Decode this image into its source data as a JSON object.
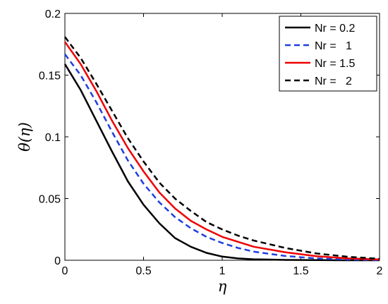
{
  "chart_data": {
    "type": "line",
    "title": "",
    "xlabel": "η",
    "ylabel": "θ(η)",
    "xlim": [
      0,
      2
    ],
    "ylim": [
      0,
      0.2
    ],
    "xticks": [
      0,
      0.5,
      1,
      1.5,
      2
    ],
    "xtick_labels": [
      "0",
      "0.5",
      "1",
      "1.5",
      "2"
    ],
    "yticks": [
      0,
      0.05,
      0.1,
      0.15,
      0.2
    ],
    "ytick_labels": [
      "0",
      "0.05",
      "0.1",
      "0.15",
      "0.2"
    ],
    "grid": false,
    "legend_position": "top-right",
    "series": [
      {
        "name": "Nr = 0.2",
        "color": "#000000",
        "style": "solid",
        "x": [
          0,
          0.1,
          0.2,
          0.3,
          0.4,
          0.5,
          0.6,
          0.7,
          0.8,
          0.9,
          1.0,
          1.1,
          1.2,
          1.4,
          1.6,
          1.8,
          2.0
        ],
        "y": [
          0.159,
          0.138,
          0.113,
          0.088,
          0.064,
          0.045,
          0.03,
          0.018,
          0.011,
          0.006,
          0.003,
          0.0015,
          0.0008,
          0.0003,
          0.0001,
          0.0,
          0.0
        ]
      },
      {
        "name": "Nr =   1",
        "color": "#1f3fe0",
        "style": "dashed",
        "x": [
          0,
          0.1,
          0.2,
          0.3,
          0.4,
          0.5,
          0.6,
          0.7,
          0.8,
          0.9,
          1.0,
          1.1,
          1.2,
          1.4,
          1.6,
          1.8,
          2.0
        ],
        "y": [
          0.167,
          0.15,
          0.128,
          0.104,
          0.081,
          0.062,
          0.047,
          0.035,
          0.026,
          0.019,
          0.014,
          0.01,
          0.007,
          0.0035,
          0.0015,
          0.0006,
          0.0002
        ]
      },
      {
        "name": "Nr = 1.5",
        "color": "#ee0000",
        "style": "solid",
        "x": [
          0,
          0.1,
          0.2,
          0.3,
          0.4,
          0.5,
          0.6,
          0.7,
          0.8,
          0.9,
          1.0,
          1.1,
          1.2,
          1.4,
          1.6,
          1.8,
          2.0
        ],
        "y": [
          0.177,
          0.159,
          0.137,
          0.113,
          0.091,
          0.072,
          0.055,
          0.042,
          0.032,
          0.025,
          0.019,
          0.015,
          0.011,
          0.0065,
          0.0033,
          0.0015,
          0.0006
        ]
      },
      {
        "name": "Nr =   2",
        "color": "#000000",
        "style": "dashed",
        "x": [
          0,
          0.1,
          0.2,
          0.3,
          0.4,
          0.5,
          0.6,
          0.7,
          0.8,
          0.9,
          1.0,
          1.1,
          1.2,
          1.4,
          1.6,
          1.8,
          2.0
        ],
        "y": [
          0.181,
          0.164,
          0.143,
          0.121,
          0.099,
          0.08,
          0.063,
          0.05,
          0.04,
          0.031,
          0.025,
          0.02,
          0.016,
          0.01,
          0.0055,
          0.0028,
          0.0012
        ]
      }
    ]
  }
}
